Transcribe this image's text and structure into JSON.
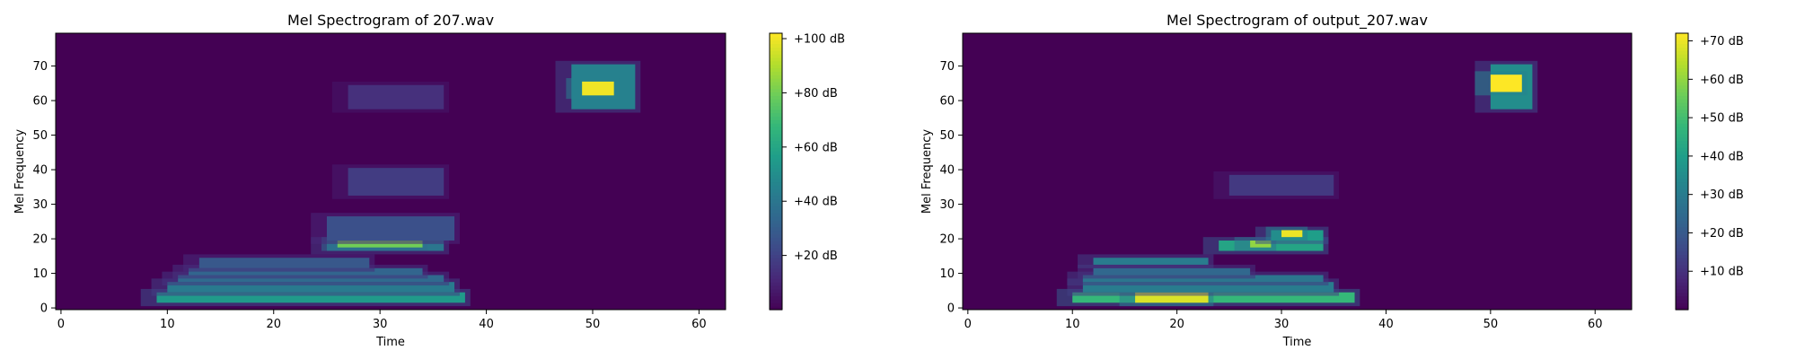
{
  "chart_data": [
    {
      "type": "heatmap",
      "title": "Mel Spectrogram of 207.wav",
      "xlabel": "Time",
      "ylabel": "Mel Frequency",
      "xticks": [
        "0",
        "10",
        "20",
        "30",
        "40",
        "50",
        "60"
      ],
      "yticks": [
        "0",
        "10",
        "20",
        "30",
        "40",
        "50",
        "60",
        "70"
      ],
      "xlim": [
        -0.5,
        62.5
      ],
      "ylim": [
        -0.5,
        79.5
      ],
      "colormap": "viridis",
      "colorbar": {
        "range": [
          0,
          102
        ],
        "ticks": [
          20,
          40,
          60,
          80,
          100
        ],
        "tick_labels": [
          "+20 dB",
          "+40 dB",
          "+60 dB",
          "+80 dB",
          "+100 dB"
        ]
      },
      "features": [
        {
          "t": [
            9,
            37
          ],
          "f": [
            2,
            4
          ],
          "level": 55
        },
        {
          "t": [
            10,
            36
          ],
          "f": [
            5,
            7
          ],
          "level": 42
        },
        {
          "t": [
            11,
            35
          ],
          "f": [
            8,
            9
          ],
          "level": 35
        },
        {
          "t": [
            12,
            33
          ],
          "f": [
            10,
            11
          ],
          "level": 33
        },
        {
          "t": [
            13,
            28
          ],
          "f": [
            12,
            14
          ],
          "level": 28
        },
        {
          "t": [
            25,
            35
          ],
          "f": [
            17,
            19
          ],
          "level": 40
        },
        {
          "t": [
            26,
            33
          ],
          "f": [
            18,
            19
          ],
          "level": 80
        },
        {
          "t": [
            28,
            33
          ],
          "f": [
            21,
            22
          ],
          "level": 55
        },
        {
          "t": [
            25,
            36
          ],
          "f": [
            20,
            26
          ],
          "level": 25
        },
        {
          "t": [
            27,
            35
          ],
          "f": [
            33,
            40
          ],
          "level": 18
        },
        {
          "t": [
            27,
            35
          ],
          "f": [
            58,
            64
          ],
          "level": 14
        },
        {
          "t": [
            48,
            53
          ],
          "f": [
            58,
            70
          ],
          "level": 45
        },
        {
          "t": [
            49,
            51
          ],
          "f": [
            62,
            65
          ],
          "level": 100
        }
      ]
    },
    {
      "type": "heatmap",
      "title": "Mel Spectrogram of output_207.wav",
      "xlabel": "Time",
      "ylabel": "Mel Frequency",
      "xticks": [
        "0",
        "10",
        "20",
        "30",
        "40",
        "50",
        "60"
      ],
      "yticks": [
        "0",
        "10",
        "20",
        "30",
        "40",
        "50",
        "60",
        "70"
      ],
      "xlim": [
        -0.5,
        63.5
      ],
      "ylim": [
        -0.5,
        79.5
      ],
      "colormap": "viridis",
      "colorbar": {
        "range": [
          0,
          72
        ],
        "ticks": [
          10,
          20,
          30,
          40,
          50,
          60,
          70
        ],
        "tick_labels": [
          "+10 dB",
          "+20 dB",
          "+30 dB",
          "+40 dB",
          "+50 dB",
          "+60 dB",
          "+70 dB"
        ]
      },
      "features": [
        {
          "t": [
            10,
            36
          ],
          "f": [
            2,
            4
          ],
          "level": 48
        },
        {
          "t": [
            16,
            22
          ],
          "f": [
            2,
            4
          ],
          "level": 68
        },
        {
          "t": [
            11,
            34
          ],
          "f": [
            5,
            7
          ],
          "level": 30
        },
        {
          "t": [
            11,
            33
          ],
          "f": [
            8,
            9
          ],
          "level": 28
        },
        {
          "t": [
            12,
            26
          ],
          "f": [
            10,
            11
          ],
          "level": 24
        },
        {
          "t": [
            12,
            22
          ],
          "f": [
            13,
            14
          ],
          "level": 30
        },
        {
          "t": [
            24,
            33
          ],
          "f": [
            17,
            19
          ],
          "level": 42
        },
        {
          "t": [
            27,
            28
          ],
          "f": [
            18,
            19
          ],
          "level": 60
        },
        {
          "t": [
            29,
            33
          ],
          "f": [
            20,
            22
          ],
          "level": 40
        },
        {
          "t": [
            30,
            31
          ],
          "f": [
            21,
            22
          ],
          "level": 70
        },
        {
          "t": [
            25,
            34
          ],
          "f": [
            33,
            38
          ],
          "level": 12
        },
        {
          "t": [
            50,
            53
          ],
          "f": [
            58,
            70
          ],
          "level": 35
        },
        {
          "t": [
            50,
            52
          ],
          "f": [
            63,
            67
          ],
          "level": 72
        }
      ]
    }
  ]
}
